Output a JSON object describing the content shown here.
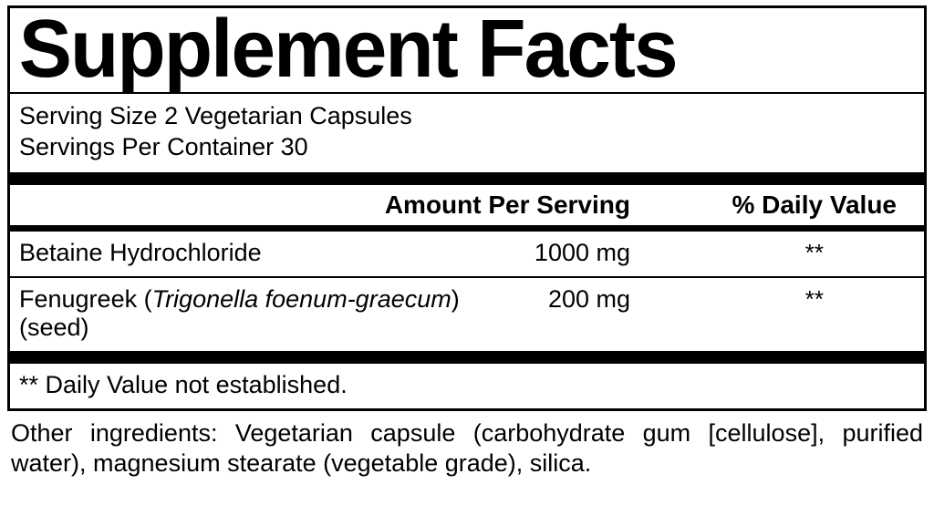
{
  "panel": {
    "title": "Supplement Facts",
    "serving_size_label": "Serving Size",
    "serving_size_value": "2 Vegetarian Capsules",
    "servings_per_container_label": "Servings Per Container",
    "servings_per_container_value": "30",
    "header_amount": "Amount Per Serving",
    "header_dv": "% Daily Value",
    "rows": [
      {
        "name_plain": "Betaine Hydrochloride",
        "name_sci": "",
        "name_suffix": "",
        "amount": "1000 mg",
        "dv": "**"
      },
      {
        "name_plain": "Fenugreek (",
        "name_sci": "Trigonella foenum-graecum",
        "name_suffix": ") (seed)",
        "amount": "200 mg",
        "dv": "**"
      }
    ],
    "footnote": "** Daily Value not established."
  },
  "other_ingredients": "Other ingredients: Vegetarian capsule (carbohydrate gum [cellulose], purified water), magnesium stearate (vegetable grade), silica."
}
